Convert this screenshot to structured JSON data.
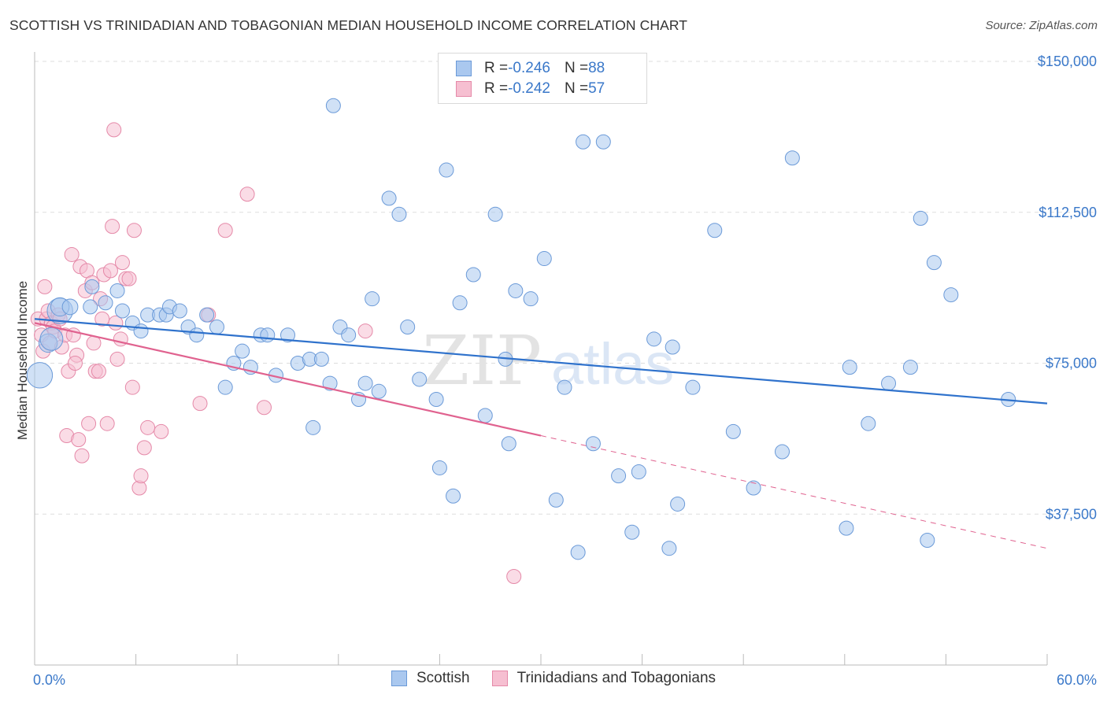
{
  "title": "SCOTTISH VS TRINIDADIAN AND TOBAGONIAN MEDIAN HOUSEHOLD INCOME CORRELATION CHART",
  "source": "Source: ZipAtlas.com",
  "watermark": {
    "zip": "ZIP",
    "atlas": "atlas"
  },
  "legend_top": {
    "rows": [
      {
        "r_label": "R = ",
        "r_value": "-0.246",
        "n_label": "N = ",
        "n_value": "88"
      },
      {
        "r_label": "R = ",
        "r_value": "-0.242",
        "n_label": "N = ",
        "n_value": "57"
      }
    ]
  },
  "legend_bottom": {
    "items": [
      "Scottish",
      "Trinidadians and Tobagonians"
    ]
  },
  "colors": {
    "blue_fill": "#aac8ef",
    "blue_stroke": "#6b9ad8",
    "blue_line": "#2f72cc",
    "pink_fill": "#f6bfd1",
    "pink_stroke": "#e589a8",
    "pink_line": "#e0628f",
    "grid": "#dddddd",
    "label": "#3a78c9"
  },
  "chart_data": {
    "type": "scatter",
    "xlabel": "",
    "ylabel": "Median Household Income",
    "xlim": [
      0,
      60
    ],
    "ylim": [
      0,
      150000
    ],
    "x_tick_labels": [
      "0.0%",
      "60.0%"
    ],
    "y_ticks": [
      37500,
      75000,
      112500,
      150000
    ],
    "y_tick_labels": [
      "$37,500",
      "$75,000",
      "$112,500",
      "$150,000"
    ],
    "grid": true,
    "legend_position": "top-center",
    "series": [
      {
        "name": "Scottish",
        "r": -0.246,
        "n": 88,
        "trend": {
          "x": [
            0,
            60
          ],
          "y": [
            86000,
            65000
          ]
        },
        "points": [
          [
            0.3,
            72000,
            1.8
          ],
          [
            0.8,
            80000,
            1.3
          ],
          [
            1.0,
            81000,
            1.6
          ],
          [
            1.5,
            88000,
            1.8
          ],
          [
            1.5,
            89000,
            1.3
          ],
          [
            2.1,
            89000,
            1.1
          ],
          [
            3.3,
            89000,
            1.0
          ],
          [
            3.4,
            94000,
            1.0
          ],
          [
            4.2,
            90000,
            1.0
          ],
          [
            4.9,
            93000,
            1.0
          ],
          [
            5.2,
            88000,
            1.0
          ],
          [
            5.8,
            85000,
            1.0
          ],
          [
            6.3,
            83000,
            1.0
          ],
          [
            6.7,
            87000,
            1.0
          ],
          [
            7.4,
            87000,
            1.0
          ],
          [
            7.8,
            87000,
            1.0
          ],
          [
            8.0,
            89000,
            1.0
          ],
          [
            8.6,
            88000,
            1.0
          ],
          [
            9.1,
            84000,
            1.0
          ],
          [
            9.6,
            82000,
            1.0
          ],
          [
            10.2,
            87000,
            1.0
          ],
          [
            10.8,
            84000,
            1.0
          ],
          [
            11.3,
            69000,
            1.0
          ],
          [
            11.8,
            75000,
            1.0
          ],
          [
            12.3,
            78000,
            1.0
          ],
          [
            12.8,
            74000,
            1.0
          ],
          [
            13.4,
            82000,
            1.0
          ],
          [
            13.8,
            82000,
            1.0
          ],
          [
            14.3,
            72000,
            1.0
          ],
          [
            15.0,
            82000,
            1.0
          ],
          [
            15.6,
            75000,
            1.0
          ],
          [
            16.3,
            76000,
            1.0
          ],
          [
            16.5,
            59000,
            1.0
          ],
          [
            17.0,
            76000,
            1.0
          ],
          [
            17.5,
            70000,
            1.0
          ],
          [
            17.7,
            139000,
            1.0
          ],
          [
            18.1,
            84000,
            1.0
          ],
          [
            18.6,
            82000,
            1.0
          ],
          [
            19.2,
            66000,
            1.0
          ],
          [
            19.6,
            70000,
            1.0
          ],
          [
            20.0,
            91000,
            1.0
          ],
          [
            20.4,
            68000,
            1.0
          ],
          [
            21.0,
            116000,
            1.0
          ],
          [
            21.6,
            112000,
            1.0
          ],
          [
            22.1,
            84000,
            1.0
          ],
          [
            22.8,
            71000,
            1.0
          ],
          [
            23.8,
            66000,
            1.0
          ],
          [
            24.0,
            49000,
            1.0
          ],
          [
            24.4,
            123000,
            1.0
          ],
          [
            24.8,
            42000,
            1.0
          ],
          [
            25.2,
            90000,
            1.0
          ],
          [
            26.0,
            97000,
            1.0
          ],
          [
            26.7,
            62000,
            1.0
          ],
          [
            27.3,
            112000,
            1.0
          ],
          [
            27.9,
            76000,
            1.0
          ],
          [
            28.1,
            55000,
            1.0
          ],
          [
            28.5,
            93000,
            1.0
          ],
          [
            29.4,
            91000,
            1.0
          ],
          [
            30.2,
            101000,
            1.0
          ],
          [
            30.9,
            41000,
            1.0
          ],
          [
            31.4,
            69000,
            1.0
          ],
          [
            32.2,
            28000,
            1.0
          ],
          [
            32.5,
            130000,
            1.0
          ],
          [
            33.1,
            55000,
            1.0
          ],
          [
            33.7,
            130000,
            1.0
          ],
          [
            34.6,
            47000,
            1.0
          ],
          [
            35.4,
            33000,
            1.0
          ],
          [
            35.8,
            48000,
            1.0
          ],
          [
            36.7,
            81000,
            1.0
          ],
          [
            37.6,
            29000,
            1.0
          ],
          [
            37.8,
            79000,
            1.0
          ],
          [
            38.1,
            40000,
            1.0
          ],
          [
            39.0,
            69000,
            1.0
          ],
          [
            40.3,
            108000,
            1.0
          ],
          [
            41.4,
            58000,
            1.0
          ],
          [
            42.6,
            44000,
            1.0
          ],
          [
            44.3,
            53000,
            1.0
          ],
          [
            44.9,
            126000,
            1.0
          ],
          [
            48.1,
            34000,
            1.0
          ],
          [
            48.3,
            74000,
            1.0
          ],
          [
            49.4,
            60000,
            1.0
          ],
          [
            50.6,
            70000,
            1.0
          ],
          [
            51.9,
            74000,
            1.0
          ],
          [
            52.5,
            111000,
            1.0
          ],
          [
            52.9,
            31000,
            1.0
          ],
          [
            53.3,
            100000,
            1.0
          ],
          [
            54.3,
            92000,
            1.0
          ],
          [
            57.7,
            66000,
            1.0
          ]
        ]
      },
      {
        "name": "Trinidadians and Tobagonians",
        "r": -0.242,
        "n": 57,
        "trend": {
          "x": [
            0,
            60
          ],
          "y": [
            85000,
            29000
          ]
        },
        "trend_solid_end_x": 30,
        "points": [
          [
            0.2,
            86000,
            1
          ],
          [
            0.4,
            82000,
            1
          ],
          [
            0.5,
            78000,
            1
          ],
          [
            0.6,
            94000,
            1
          ],
          [
            0.7,
            86000,
            1
          ],
          [
            0.8,
            88000,
            1
          ],
          [
            0.9,
            80000,
            1
          ],
          [
            1.0,
            85000,
            1
          ],
          [
            1.1,
            84000,
            1
          ],
          [
            1.2,
            83000,
            1
          ],
          [
            1.4,
            87000,
            1
          ],
          [
            1.5,
            86000,
            1
          ],
          [
            1.6,
            79000,
            1
          ],
          [
            1.8,
            82000,
            1
          ],
          [
            2.0,
            73000,
            1
          ],
          [
            2.2,
            102000,
            1
          ],
          [
            1.9,
            57000,
            1
          ],
          [
            2.3,
            82000,
            1
          ],
          [
            2.5,
            77000,
            1
          ],
          [
            2.6,
            56000,
            1
          ],
          [
            2.7,
            99000,
            1
          ],
          [
            2.8,
            52000,
            1
          ],
          [
            3.0,
            93000,
            1
          ],
          [
            3.1,
            98000,
            1
          ],
          [
            3.2,
            60000,
            1
          ],
          [
            3.4,
            95000,
            1
          ],
          [
            3.5,
            80000,
            1
          ],
          [
            3.6,
            73000,
            1
          ],
          [
            3.8,
            73000,
            1
          ],
          [
            4.0,
            86000,
            1
          ],
          [
            4.1,
            97000,
            1
          ],
          [
            4.3,
            60000,
            1
          ],
          [
            4.5,
            98000,
            1
          ],
          [
            4.6,
            109000,
            1
          ],
          [
            4.7,
            133000,
            1
          ],
          [
            4.8,
            85000,
            1
          ],
          [
            4.9,
            76000,
            1
          ],
          [
            5.1,
            81000,
            1
          ],
          [
            5.2,
            100000,
            1
          ],
          [
            5.4,
            96000,
            1
          ],
          [
            5.6,
            96000,
            1
          ],
          [
            5.8,
            69000,
            1
          ],
          [
            5.9,
            108000,
            1
          ],
          [
            6.2,
            44000,
            1
          ],
          [
            6.3,
            47000,
            1
          ],
          [
            6.5,
            54000,
            1
          ],
          [
            6.7,
            59000,
            1
          ],
          [
            7.5,
            58000,
            1
          ],
          [
            9.8,
            65000,
            1
          ],
          [
            10.3,
            87000,
            1
          ],
          [
            11.3,
            108000,
            1
          ],
          [
            12.6,
            117000,
            1
          ],
          [
            13.6,
            64000,
            1
          ],
          [
            19.6,
            83000,
            1
          ],
          [
            28.4,
            22000,
            1
          ],
          [
            2.4,
            75000,
            1
          ],
          [
            3.9,
            91000,
            1
          ]
        ]
      }
    ]
  }
}
